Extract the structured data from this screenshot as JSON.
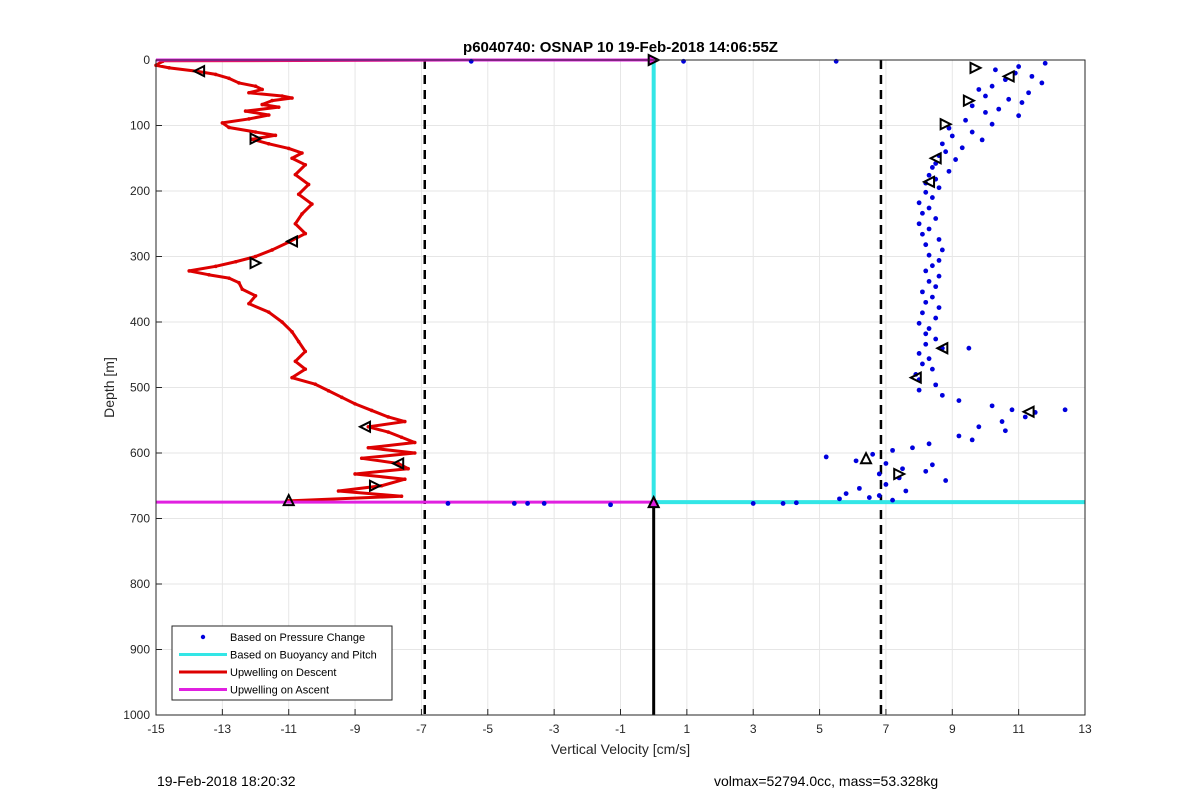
{
  "chart_data": {
    "type": "scatter",
    "title": "p6040740: OSNAP 10 19-Feb-2018 14:06:55Z",
    "xlabel": "Vertical Velocity [cm/s]",
    "ylabel": "Depth [m]",
    "xlim": [
      -15,
      13
    ],
    "ylim": [
      0,
      1000
    ],
    "y_reversed": true,
    "grid": true,
    "x_ticks": [
      -15,
      -13,
      -11,
      -9,
      -7,
      -5,
      -3,
      -1,
      1,
      3,
      5,
      7,
      9,
      11,
      13
    ],
    "y_ticks": [
      0,
      100,
      200,
      300,
      400,
      500,
      600,
      700,
      800,
      900,
      1000
    ],
    "legend": {
      "position": "bottom-left",
      "entries": [
        {
          "label": "Based on Pressure Change",
          "color": "#0000dd",
          "marker": "dot"
        },
        {
          "label": "Based on Buoyancy and Pitch",
          "color": "#33e6e6",
          "marker": "line"
        },
        {
          "label": "Upwelling on Descent",
          "color": "#dd0000",
          "marker": "line"
        },
        {
          "label": "Upwelling on Ascent",
          "color": "#e020e0",
          "marker": "line"
        }
      ]
    },
    "reference_lines": {
      "dashed_x": [
        -6.9,
        6.85
      ],
      "zero_line_from_depth": 675,
      "surface_depth": 0,
      "bottom_depth": 675
    },
    "series": [
      {
        "name": "Upwelling on Descent",
        "color": "#dd0000",
        "points": [
          [
            -14.8,
            2
          ],
          [
            -15,
            8
          ],
          [
            -14.6,
            12
          ],
          [
            -13.8,
            17
          ],
          [
            -13.2,
            22
          ],
          [
            -12.8,
            28
          ],
          [
            -12.5,
            35
          ],
          [
            -12,
            40
          ],
          [
            -11.8,
            45
          ],
          [
            -12.2,
            50
          ],
          [
            -11.2,
            55
          ],
          [
            -10.9,
            58
          ],
          [
            -11.5,
            62
          ],
          [
            -11.8,
            68
          ],
          [
            -11.3,
            72
          ],
          [
            -12.3,
            78
          ],
          [
            -11.6,
            84
          ],
          [
            -12.2,
            90
          ],
          [
            -13.0,
            96
          ],
          [
            -12.8,
            103
          ],
          [
            -12.0,
            110
          ],
          [
            -11.4,
            115
          ],
          [
            -12.1,
            121
          ],
          [
            -11.6,
            128
          ],
          [
            -11.0,
            135
          ],
          [
            -10.6,
            142
          ],
          [
            -10.9,
            150
          ],
          [
            -10.5,
            160
          ],
          [
            -10.8,
            175
          ],
          [
            -10.4,
            190
          ],
          [
            -10.7,
            205
          ],
          [
            -10.3,
            220
          ],
          [
            -10.6,
            235
          ],
          [
            -10.8,
            250
          ],
          [
            -10.5,
            265
          ],
          [
            -11.0,
            278
          ],
          [
            -11.5,
            290
          ],
          [
            -12.0,
            300
          ],
          [
            -12.6,
            308
          ],
          [
            -13.2,
            315
          ],
          [
            -14.0,
            322
          ],
          [
            -13.4,
            328
          ],
          [
            -12.8,
            333
          ],
          [
            -12.5,
            340
          ],
          [
            -12.4,
            350
          ],
          [
            -12.0,
            360
          ],
          [
            -12.2,
            372
          ],
          [
            -11.6,
            385
          ],
          [
            -11.2,
            400
          ],
          [
            -10.9,
            415
          ],
          [
            -10.7,
            430
          ],
          [
            -10.5,
            445
          ],
          [
            -10.8,
            460
          ],
          [
            -10.5,
            472
          ],
          [
            -10.9,
            485
          ],
          [
            -10.2,
            495
          ],
          [
            -9.8,
            505
          ],
          [
            -9.4,
            515
          ],
          [
            -9.0,
            525
          ],
          [
            -8.5,
            535
          ],
          [
            -8.0,
            545
          ],
          [
            -7.5,
            552
          ],
          [
            -8.6,
            560
          ],
          [
            -8.0,
            568
          ],
          [
            -7.6,
            576
          ],
          [
            -7.2,
            584
          ],
          [
            -8.6,
            592
          ],
          [
            -7.2,
            600
          ],
          [
            -8.8,
            608
          ],
          [
            -7.7,
            616
          ],
          [
            -7.4,
            624
          ],
          [
            -9.0,
            632
          ],
          [
            -7.5,
            640
          ],
          [
            -8.2,
            650
          ],
          [
            -9.5,
            658
          ],
          [
            -7.6,
            666
          ],
          [
            -11.0,
            673
          ]
        ]
      },
      {
        "name": "Upwelling on Ascent",
        "color": "#e020e0",
        "segments": [
          [
            -15,
            0,
            0,
            0
          ],
          [
            -15,
            675,
            13,
            675
          ]
        ]
      },
      {
        "name": "Based on Buoyancy and Pitch",
        "color": "#33e6e6",
        "segments": [
          [
            0,
            0,
            0,
            675
          ],
          [
            0,
            675,
            13,
            675
          ]
        ]
      },
      {
        "name": "Based on Pressure Change",
        "color": "#0000dd",
        "points": [
          [
            11.8,
            5
          ],
          [
            11.0,
            10
          ],
          [
            10.3,
            15
          ],
          [
            10.9,
            20
          ],
          [
            11.4,
            25
          ],
          [
            10.6,
            30
          ],
          [
            11.7,
            35
          ],
          [
            10.2,
            40
          ],
          [
            9.8,
            45
          ],
          [
            11.3,
            50
          ],
          [
            10.0,
            55
          ],
          [
            10.7,
            60
          ],
          [
            11.1,
            65
          ],
          [
            9.6,
            70
          ],
          [
            10.4,
            75
          ],
          [
            10.0,
            80
          ],
          [
            11.0,
            85
          ],
          [
            9.4,
            92
          ],
          [
            10.2,
            98
          ],
          [
            8.9,
            104
          ],
          [
            9.6,
            110
          ],
          [
            9.0,
            116
          ],
          [
            9.9,
            122
          ],
          [
            8.7,
            128
          ],
          [
            9.3,
            134
          ],
          [
            8.8,
            140
          ],
          [
            8.6,
            146
          ],
          [
            9.1,
            152
          ],
          [
            8.5,
            158
          ],
          [
            8.4,
            164
          ],
          [
            8.9,
            170
          ],
          [
            8.3,
            176
          ],
          [
            8.5,
            182
          ],
          [
            8.2,
            188
          ],
          [
            8.6,
            195
          ],
          [
            8.2,
            202
          ],
          [
            8.4,
            210
          ],
          [
            8.0,
            218
          ],
          [
            8.3,
            226
          ],
          [
            8.1,
            234
          ],
          [
            8.5,
            242
          ],
          [
            8.0,
            250
          ],
          [
            8.3,
            258
          ],
          [
            8.1,
            266
          ],
          [
            8.6,
            274
          ],
          [
            8.2,
            282
          ],
          [
            8.7,
            290
          ],
          [
            8.3,
            298
          ],
          [
            8.6,
            306
          ],
          [
            8.4,
            314
          ],
          [
            8.2,
            322
          ],
          [
            8.6,
            330
          ],
          [
            8.3,
            338
          ],
          [
            8.5,
            346
          ],
          [
            8.1,
            354
          ],
          [
            8.4,
            362
          ],
          [
            8.2,
            370
          ],
          [
            8.6,
            378
          ],
          [
            8.1,
            386
          ],
          [
            8.5,
            394
          ],
          [
            8.0,
            402
          ],
          [
            8.3,
            410
          ],
          [
            8.2,
            418
          ],
          [
            8.5,
            426
          ],
          [
            8.2,
            434
          ],
          [
            8.7,
            440
          ],
          [
            9.5,
            440
          ],
          [
            8.0,
            448
          ],
          [
            8.3,
            456
          ],
          [
            8.1,
            464
          ],
          [
            8.4,
            472
          ],
          [
            7.9,
            480
          ],
          [
            8.0,
            488
          ],
          [
            8.5,
            496
          ],
          [
            8.0,
            504
          ],
          [
            8.7,
            512
          ],
          [
            9.2,
            520
          ],
          [
            10.2,
            528
          ],
          [
            10.8,
            534
          ],
          [
            11.5,
            538
          ],
          [
            12.4,
            534
          ],
          [
            11.2,
            545
          ],
          [
            10.5,
            552
          ],
          [
            9.8,
            560
          ],
          [
            10.6,
            566
          ],
          [
            9.2,
            574
          ],
          [
            9.6,
            580
          ],
          [
            8.3,
            586
          ],
          [
            7.8,
            592
          ],
          [
            7.2,
            596
          ],
          [
            6.6,
            602
          ],
          [
            5.2,
            606
          ],
          [
            6.1,
            612
          ],
          [
            7.0,
            616
          ],
          [
            8.4,
            618
          ],
          [
            7.5,
            624
          ],
          [
            8.2,
            628
          ],
          [
            6.8,
            632
          ],
          [
            7.4,
            638
          ],
          [
            8.8,
            642
          ],
          [
            7.0,
            648
          ],
          [
            6.2,
            654
          ],
          [
            7.6,
            658
          ],
          [
            5.8,
            662
          ],
          [
            6.5,
            668
          ],
          [
            7.2,
            672
          ],
          [
            5.6,
            670
          ],
          [
            6.8,
            665
          ],
          [
            0.9,
            2
          ],
          [
            5.5,
            2
          ],
          [
            -5.5,
            2
          ],
          [
            -6.2,
            677
          ],
          [
            -4.2,
            677
          ],
          [
            -3.8,
            677
          ],
          [
            -3.3,
            677
          ],
          [
            -1.3,
            679
          ],
          [
            3.0,
            677
          ],
          [
            3.9,
            677
          ],
          [
            4.3,
            676
          ]
        ]
      }
    ],
    "triangle_markers": [
      {
        "x": 9.7,
        "y": 12,
        "dir": "right"
      },
      {
        "x": 10.7,
        "y": 25,
        "dir": "left"
      },
      {
        "x": 9.5,
        "y": 62,
        "dir": "right"
      },
      {
        "x": 8.8,
        "y": 98,
        "dir": "right"
      },
      {
        "x": 8.5,
        "y": 150,
        "dir": "left"
      },
      {
        "x": 8.3,
        "y": 186,
        "dir": "left"
      },
      {
        "x": 8.7,
        "y": 440,
        "dir": "left"
      },
      {
        "x": 7.9,
        "y": 485,
        "dir": "left"
      },
      {
        "x": 11.3,
        "y": 537,
        "dir": "left"
      },
      {
        "x": 6.4,
        "y": 608,
        "dir": "up"
      },
      {
        "x": 7.4,
        "y": 632,
        "dir": "right"
      },
      {
        "x": -13.7,
        "y": 17,
        "dir": "left"
      },
      {
        "x": -12.0,
        "y": 120,
        "dir": "right"
      },
      {
        "x": -10.9,
        "y": 277,
        "dir": "left"
      },
      {
        "x": -12.0,
        "y": 310,
        "dir": "right"
      },
      {
        "x": -8.7,
        "y": 560,
        "dir": "left"
      },
      {
        "x": -7.7,
        "y": 616,
        "dir": "left"
      },
      {
        "x": -8.4,
        "y": 650,
        "dir": "right"
      },
      {
        "x": -11.0,
        "y": 672,
        "dir": "up"
      },
      {
        "x": 0,
        "y": 0,
        "dir": "right"
      },
      {
        "x": 0,
        "y": 675,
        "dir": "up"
      }
    ]
  },
  "footer": {
    "left": "19-Feb-2018 18:20:32",
    "right": "volmax=52794.0cc, mass=53.328kg"
  }
}
